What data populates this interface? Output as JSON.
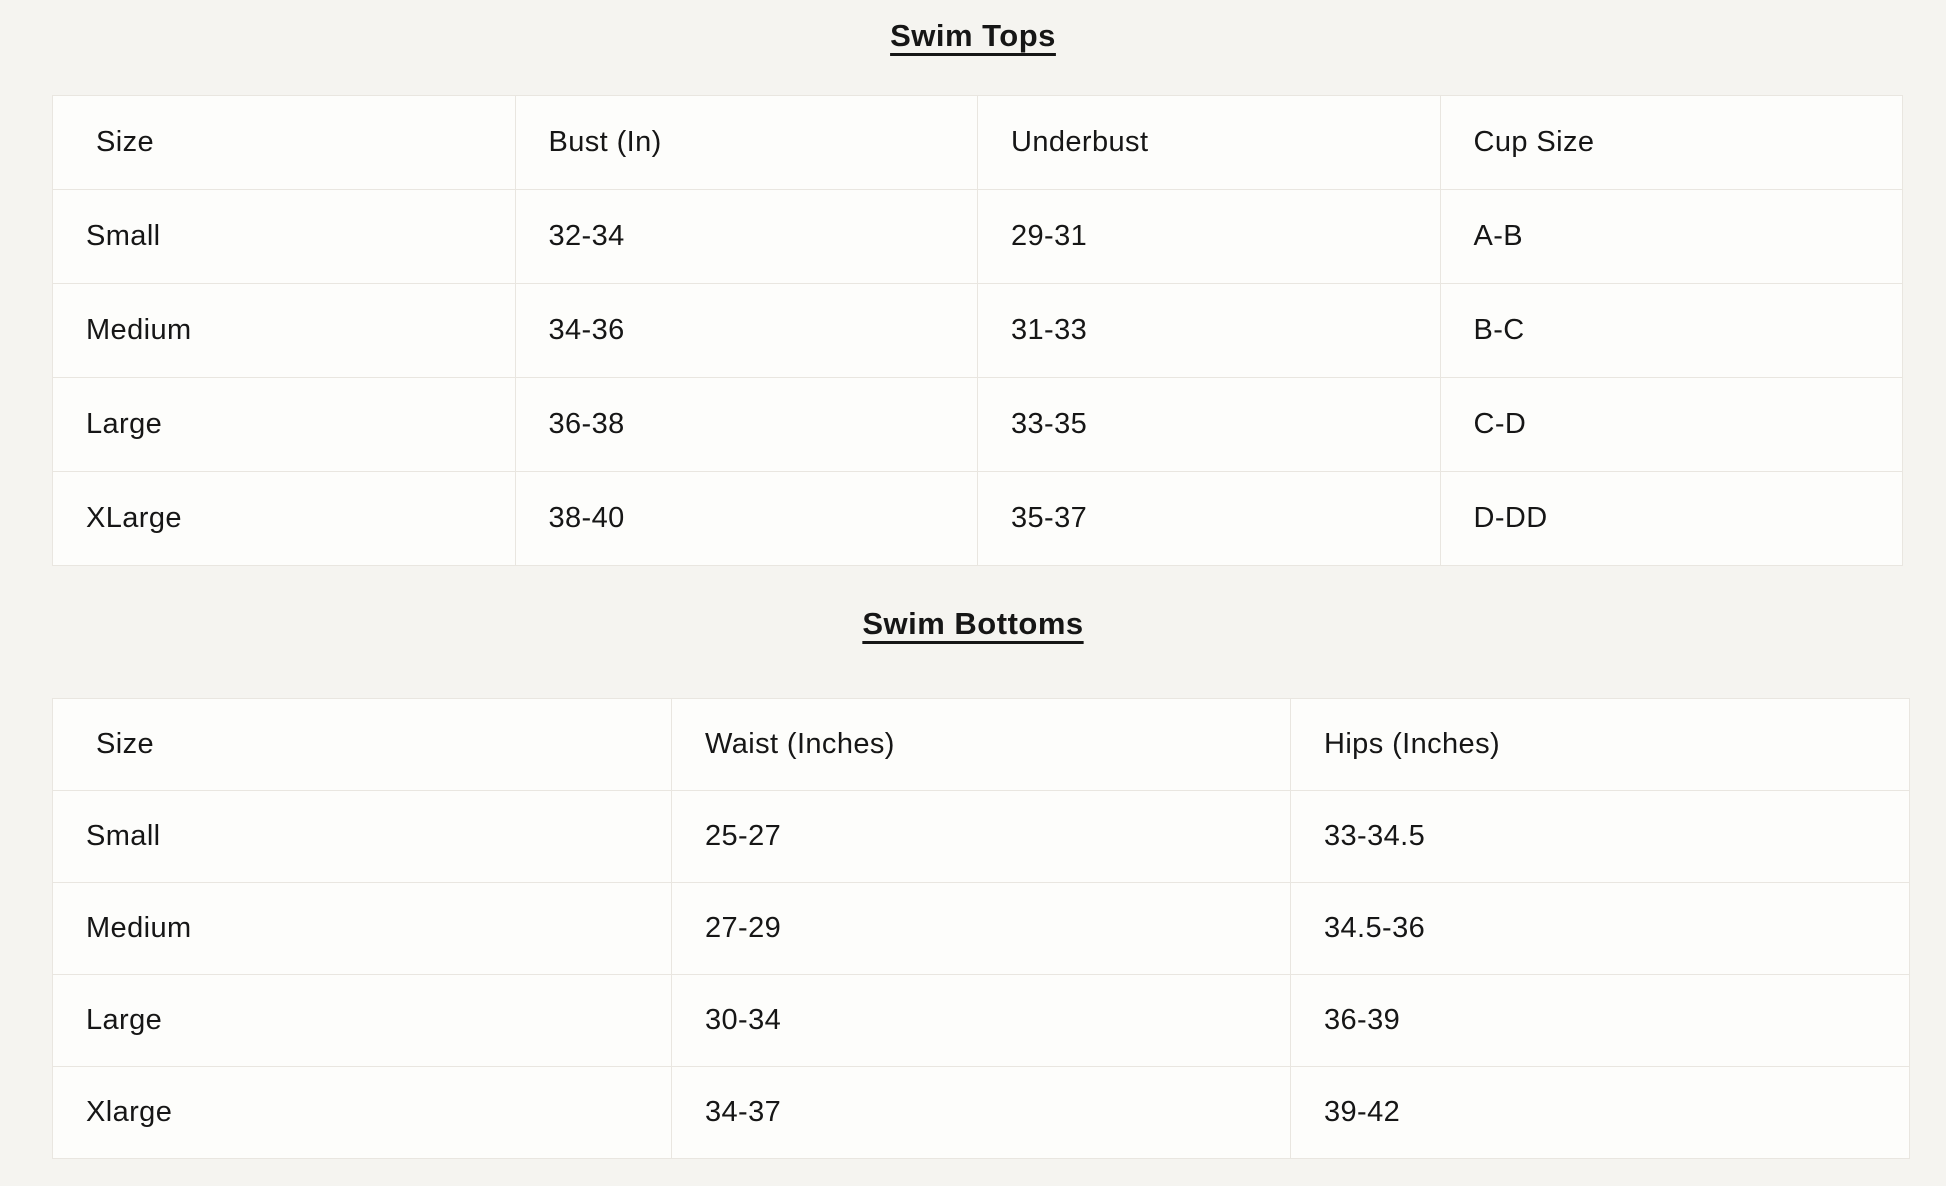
{
  "colors": {
    "page_background": "#f5f4f0",
    "cell_background": "#fdfdfb",
    "border": "#e9e6e0",
    "text": "#161616"
  },
  "tables": [
    {
      "title": "Swim Tops",
      "headers": [
        "Size",
        "Bust (In)",
        "Underbust",
        "Cup Size"
      ],
      "rows": [
        [
          "Small",
          "32-34",
          "29-31",
          "A-B"
        ],
        [
          "Medium",
          "34-36",
          "31-33",
          "B-C"
        ],
        [
          "Large",
          "36-38",
          "33-35",
          "C-D"
        ],
        [
          "XLarge",
          "38-40",
          "35-37",
          "D-DD"
        ]
      ]
    },
    {
      "title": "Swim Bottoms",
      "headers": [
        "Size",
        "Waist (Inches)",
        "Hips (Inches)"
      ],
      "rows": [
        [
          "Small",
          "25-27",
          "33-34.5"
        ],
        [
          "Medium",
          "27-29",
          "34.5-36"
        ],
        [
          "Large",
          "30-34",
          "36-39"
        ],
        [
          "Xlarge",
          "34-37",
          "39-42"
        ]
      ]
    }
  ]
}
